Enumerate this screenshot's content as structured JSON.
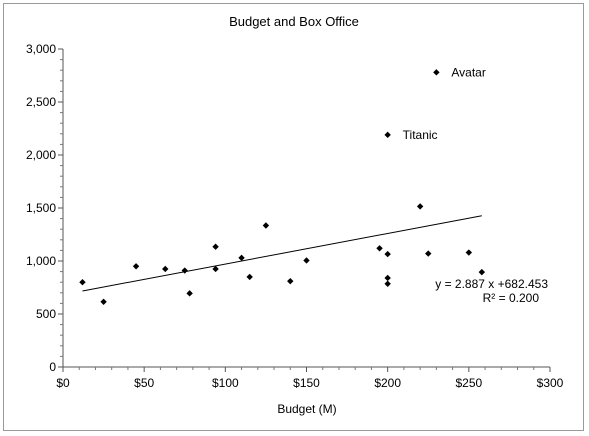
{
  "chart_data": {
    "type": "scatter",
    "title": "Budget and Box Office",
    "xlabel": "Budget (M)",
    "ylabel": "",
    "xlim": [
      0,
      300
    ],
    "ylim": [
      0,
      3000
    ],
    "x_ticks": [
      0,
      50,
      100,
      150,
      200,
      250,
      300
    ],
    "x_tick_labels": [
      "$0",
      "$50",
      "$100",
      "$150",
      "$200",
      "$250",
      "$300"
    ],
    "y_ticks": [
      0,
      500,
      1000,
      1500,
      2000,
      2500,
      3000
    ],
    "y_tick_labels": [
      "0",
      "500",
      "1,000",
      "1,500",
      "2,000",
      "2,500",
      "3,000"
    ],
    "grid": false,
    "legend": "none",
    "marker_color": "#000000",
    "points": [
      {
        "x": 12,
        "y": 800
      },
      {
        "x": 25,
        "y": 615
      },
      {
        "x": 45,
        "y": 950
      },
      {
        "x": 63,
        "y": 925
      },
      {
        "x": 75,
        "y": 910
      },
      {
        "x": 78,
        "y": 695
      },
      {
        "x": 94,
        "y": 925
      },
      {
        "x": 94,
        "y": 1135
      },
      {
        "x": 110,
        "y": 1030
      },
      {
        "x": 115,
        "y": 850
      },
      {
        "x": 125,
        "y": 1335
      },
      {
        "x": 140,
        "y": 810
      },
      {
        "x": 150,
        "y": 1005
      },
      {
        "x": 195,
        "y": 1120
      },
      {
        "x": 200,
        "y": 1065
      },
      {
        "x": 200,
        "y": 840
      },
      {
        "x": 200,
        "y": 785
      },
      {
        "x": 200,
        "y": 2190,
        "label": "Titanic"
      },
      {
        "x": 220,
        "y": 1515
      },
      {
        "x": 225,
        "y": 1070
      },
      {
        "x": 230,
        "y": 2780,
        "label": "Avatar"
      },
      {
        "x": 250,
        "y": 1080
      },
      {
        "x": 258,
        "y": 895
      }
    ],
    "trendline": {
      "slope": 2.887,
      "intercept": 682.453,
      "x_range": [
        12,
        258
      ],
      "equation": "y = 2.887 x +682.453",
      "r_squared": "R² = 0.200"
    }
  }
}
